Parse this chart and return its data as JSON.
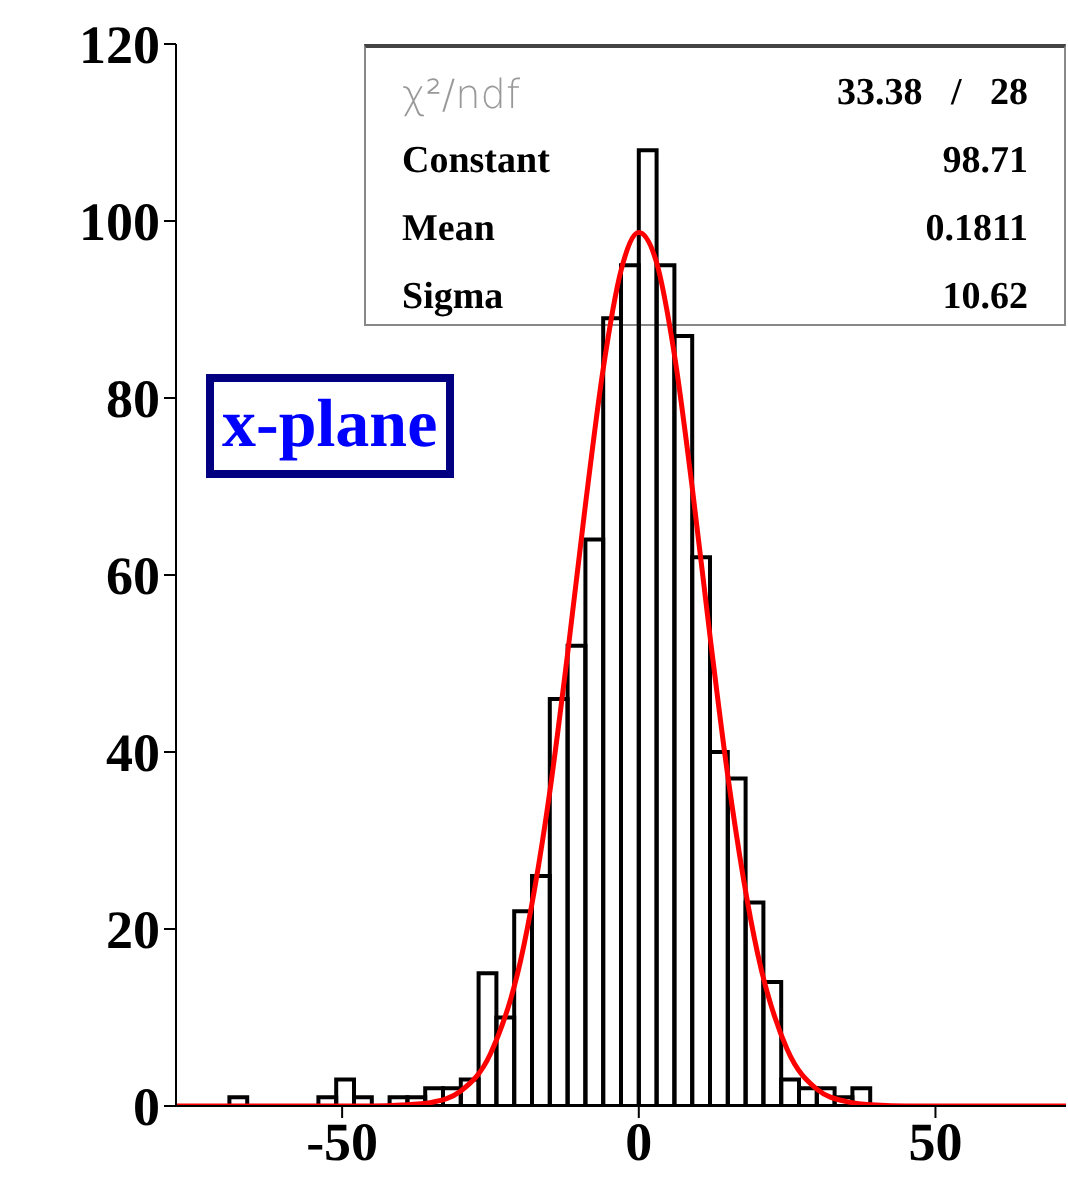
{
  "chart_data": {
    "type": "histogram",
    "bins": [
      -78,
      -75,
      -72,
      -69,
      -66,
      -63,
      -60,
      -57,
      -54,
      -51,
      -48,
      -45,
      -42,
      -39,
      -36,
      -33,
      -30,
      -27,
      -24,
      -21,
      -18,
      -15,
      -12,
      -9,
      -6,
      -3,
      0,
      3,
      6,
      9,
      12,
      15,
      18,
      21,
      24,
      27,
      30,
      33,
      36,
      39,
      42,
      45,
      48,
      51,
      54,
      57,
      60,
      63,
      66,
      69,
      72
    ],
    "series": [
      {
        "color": "#000000",
        "values": [
          0,
          0,
          0,
          1,
          0,
          0,
          0,
          0,
          1,
          3,
          1,
          0,
          1,
          1,
          2,
          2,
          3,
          15,
          10,
          22,
          26,
          46,
          52,
          64,
          89,
          95,
          108,
          95,
          87,
          62,
          40,
          37,
          23,
          14,
          3,
          2,
          2,
          1,
          2,
          0,
          0,
          0,
          0,
          0,
          0,
          0,
          0,
          0,
          0,
          0
        ]
      },
      {
        "type": "line",
        "color": "#ff0000",
        "x": [
          -78,
          -60,
          -45,
          -40,
          -35,
          -30,
          -25,
          -20,
          -15,
          -12,
          -9,
          -6,
          -3,
          0,
          3,
          6,
          9,
          12,
          15,
          20,
          25,
          30,
          35,
          40,
          45,
          60,
          72
        ],
        "values": [
          0,
          0,
          0,
          0.1,
          0.4,
          1.7,
          5.9,
          16.2,
          35.5,
          51.1,
          67.9,
          83.3,
          94.4,
          98.7,
          95.3,
          84.9,
          69.9,
          53.1,
          37.3,
          17.3,
          6.4,
          1.9,
          0.5,
          0.1,
          0,
          0,
          0
        ]
      }
    ],
    "xlim": [
      -78,
      72
    ],
    "xticks": [
      -50,
      0,
      50
    ],
    "ylim": [
      0,
      120
    ],
    "yticks": [
      0,
      20,
      40,
      60,
      80,
      100,
      120
    ],
    "annotations": [
      "χ²/ndf",
      "33.38   /   28",
      "Constant",
      "98.71",
      "Mean",
      "0.1811",
      "Sigma",
      "10.62",
      "x-plane"
    ]
  }
}
